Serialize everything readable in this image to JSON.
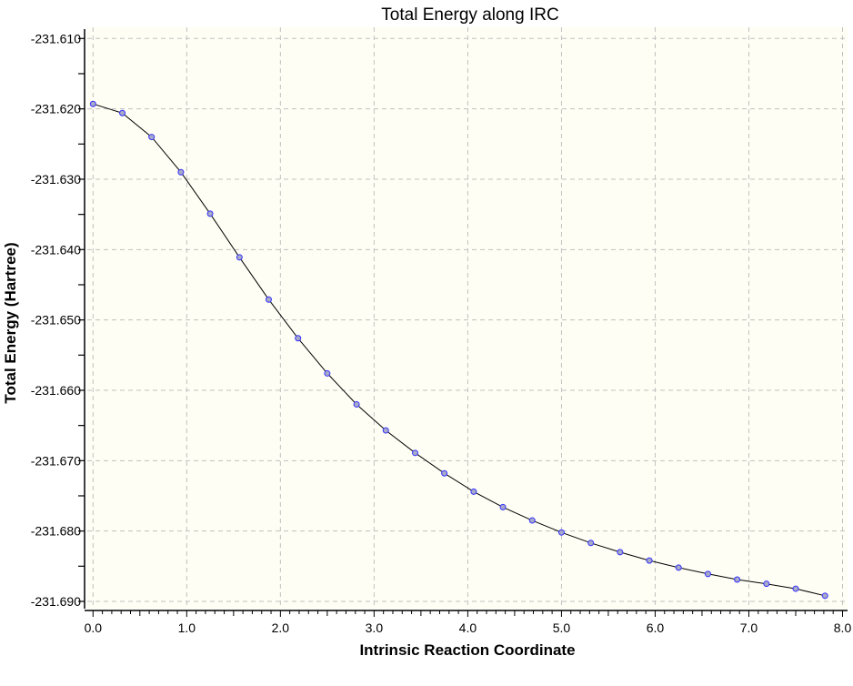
{
  "chart_data": {
    "type": "line",
    "title": "Total Energy along IRC",
    "xlabel": "Intrinsic Reaction Coordinate",
    "ylabel": "Total Energy (Hartree)",
    "xlim": [
      0.0,
      8.0
    ],
    "ylim": [
      -231.69,
      -231.61
    ],
    "x_ticks": [
      "0.0",
      "1.0",
      "2.0",
      "3.0",
      "4.0",
      "5.0",
      "6.0",
      "7.0",
      "8.0"
    ],
    "y_ticks": [
      "-231.610",
      "-231.620",
      "-231.630",
      "-231.640",
      "-231.650",
      "-231.660",
      "-231.670",
      "-231.680",
      "-231.690"
    ],
    "grid": true,
    "markers": true,
    "colors": {
      "background": "#fffef4",
      "line": "#000000",
      "marker_fill": "#a9a9c8",
      "marker_edge": "#3333ff",
      "grid": "#c0c0c0"
    },
    "x": [
      0.0,
      0.313,
      0.625,
      0.938,
      1.25,
      1.563,
      1.875,
      2.188,
      2.5,
      2.813,
      3.125,
      3.438,
      3.75,
      4.063,
      4.375,
      4.688,
      5.0,
      5.313,
      5.625,
      5.938,
      6.25,
      6.563,
      6.875,
      7.188,
      7.5,
      7.813
    ],
    "y": [
      -231.6193,
      -231.6206,
      -231.624,
      -231.629,
      -231.6349,
      -231.6411,
      -231.6471,
      -231.6526,
      -231.6576,
      -231.662,
      -231.6657,
      -231.6689,
      -231.6718,
      -231.6744,
      -231.6766,
      -231.6785,
      -231.6802,
      -231.6817,
      -231.683,
      -231.6842,
      -231.6852,
      -231.6861,
      -231.6869,
      -231.6875,
      -231.6882,
      -231.6892
    ]
  }
}
